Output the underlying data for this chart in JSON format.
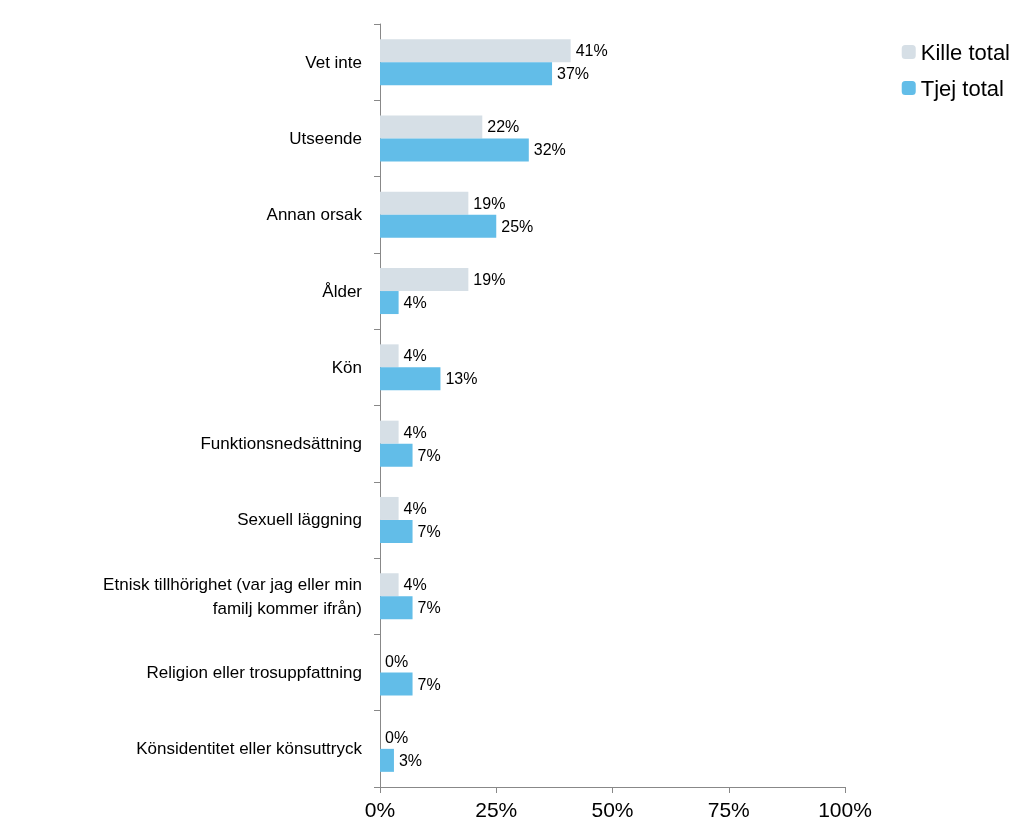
{
  "chart_data": {
    "type": "bar",
    "orientation": "horizontal",
    "categories": [
      "Vet inte",
      "Utseende",
      "Annan orsak",
      "Ålder",
      "Kön",
      "Funktionsnedsättning",
      "Sexuell läggning",
      "Etnisk tillhörighet (var jag eller min\nfamilj kommer ifrån)",
      "Religion eller trosuppfattning",
      "Könsidentitet eller könsuttryck"
    ],
    "series": [
      {
        "name": "Kille total",
        "color": "#d6dfe6",
        "values": [
          41,
          22,
          19,
          19,
          4,
          4,
          4,
          4,
          0,
          0
        ],
        "value_labels": [
          "41%",
          "22%",
          "19%",
          "19%",
          "4%",
          "4%",
          "4%",
          "4%",
          "0%",
          "0%"
        ]
      },
      {
        "name": "Tjej total",
        "color": "#62bde8",
        "values": [
          37,
          32,
          25,
          4,
          13,
          7,
          7,
          7,
          7,
          3
        ],
        "value_labels": [
          "37%",
          "32%",
          "25%",
          "4%",
          "13%",
          "7%",
          "7%",
          "7%",
          "7%",
          "3%"
        ]
      }
    ],
    "xlim": [
      0,
      100
    ],
    "xticks": [
      {
        "value": 0,
        "label": "0%"
      },
      {
        "value": 25,
        "label": "25%"
      },
      {
        "value": 50,
        "label": "50%"
      },
      {
        "value": 75,
        "label": "75%"
      },
      {
        "value": 100,
        "label": "100%"
      }
    ],
    "grid": false,
    "legend": "top right"
  }
}
